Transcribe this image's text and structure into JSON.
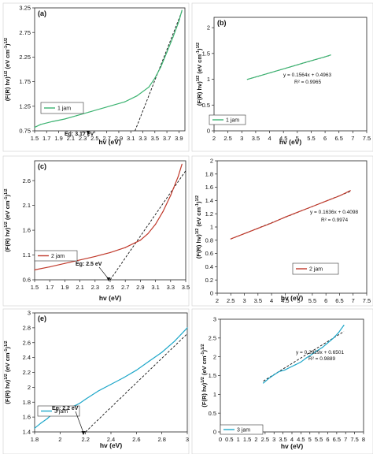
{
  "chart_data": [
    {
      "type": "line",
      "panel_label": "(a)",
      "xlabel": "hv (eV)",
      "ylabel": "(F(R) hv)^{1/2} (eV cm^{-1})^{1/2}",
      "xlim": [
        1.5,
        4.0
      ],
      "ylim": [
        0.75,
        3.25
      ],
      "xticks": [
        "1.5",
        "1.7",
        "1.9",
        "2.1",
        "2.3",
        "2.5",
        "2.7",
        "2.9",
        "3.1",
        "3.3",
        "3.5",
        "3.7",
        "3.9"
      ],
      "yticks": [
        "0.75",
        "1.25",
        "1.75",
        "2.25",
        "2.75",
        "3.25"
      ],
      "series": [
        {
          "name": "1 jam",
          "color": "#3cb371",
          "x": [
            1.5,
            1.6,
            1.8,
            2.0,
            2.2,
            2.4,
            2.6,
            2.8,
            3.0,
            3.2,
            3.4,
            3.5,
            3.6,
            3.7,
            3.8,
            3.9,
            3.95
          ],
          "y": [
            0.82,
            0.88,
            0.94,
            0.99,
            1.06,
            1.13,
            1.2,
            1.27,
            1.34,
            1.46,
            1.64,
            1.82,
            2.05,
            2.35,
            2.65,
            2.98,
            3.2
          ]
        }
      ],
      "tangent": {
        "x": [
          3.17,
          3.95
        ],
        "y": [
          0.75,
          3.18
        ]
      },
      "annotation": "Eg: 3.17 eV",
      "grid": false,
      "legend": "left"
    },
    {
      "type": "scatter",
      "panel_label": "(b)",
      "xlabel": "hv (eV)",
      "ylabel": "(F(R) hv)^{1/2} (eV cm^{-1})^{1/2}",
      "xlim": [
        2,
        7.5
      ],
      "ylim": [
        0,
        2.2
      ],
      "xticks": [
        "2",
        "2.5",
        "3",
        "3.5",
        "4",
        "4.5",
        "5",
        "5.5",
        "6",
        "6.5",
        "7",
        "7.5"
      ],
      "yticks": [
        "0",
        "0.5",
        "1",
        "1.5",
        "2"
      ],
      "series": [
        {
          "name": "1 jam",
          "color": "#3cb371",
          "x": [
            3.2,
            3.6,
            4.0,
            4.4,
            4.8,
            5.2,
            5.6,
            6.0,
            6.2
          ],
          "y": [
            0.998,
            1.058,
            1.122,
            1.186,
            1.248,
            1.312,
            1.374,
            1.435,
            1.47
          ]
        }
      ],
      "fit": {
        "x": [
          3.2,
          6.2
        ],
        "equation": "y = 0.1564x + 0.4963",
        "r2": "R² = 0.9965",
        "slope": 0.1564,
        "intercept": 0.4963
      },
      "grid": false,
      "legend": "bottom-left"
    },
    {
      "type": "line",
      "panel_label": "(c)",
      "xlabel": "hv (eV)",
      "ylabel": "(F(R) hv)^{1/2} (eV cm^{-1})^{1/2}",
      "xlim": [
        1.5,
        3.5
      ],
      "ylim": [
        0.6,
        3.0
      ],
      "xticks": [
        "1.5",
        "1.7",
        "1.9",
        "2.1",
        "2.3",
        "2.5",
        "2.7",
        "2.9",
        "3.1",
        "3.3",
        "3.5"
      ],
      "yticks": [
        "0.6",
        "1.1",
        "1.6",
        "2.1",
        "2.6"
      ],
      "series": [
        {
          "name": "2 jam",
          "color": "#c0392b",
          "x": [
            1.5,
            1.7,
            1.9,
            2.1,
            2.3,
            2.5,
            2.7,
            2.9,
            3.0,
            3.1,
            3.2,
            3.3,
            3.4,
            3.45
          ],
          "y": [
            0.8,
            0.86,
            0.93,
            1.0,
            1.07,
            1.15,
            1.25,
            1.4,
            1.53,
            1.72,
            1.98,
            2.3,
            2.68,
            2.93
          ]
        }
      ],
      "tangent": {
        "x": [
          2.5,
          3.5
        ],
        "y": [
          0.6,
          2.8
        ]
      },
      "annotation": "Eg: 2.5 eV",
      "grid": false,
      "legend": "left"
    },
    {
      "type": "scatter",
      "panel_label": "",
      "xlabel": "hv (eV)",
      "ylabel": "(F(R) hv)^{1/2} (eV cm^{-1})^{1/2}",
      "xlim": [
        2,
        7.5
      ],
      "ylim": [
        0,
        2.0
      ],
      "xticks": [
        "2",
        "2.5",
        "3",
        "3.5",
        "4",
        "4.5",
        "5",
        "5.5",
        "6",
        "6.5",
        "7",
        "7.5"
      ],
      "yticks": [
        "0",
        "0.2",
        "0.4",
        "0.6",
        "0.8",
        "1",
        "1.2",
        "1.4",
        "1.6",
        "1.8",
        "2"
      ],
      "series": [
        {
          "name": "2 jam",
          "color": "#c0392b",
          "x": [
            2.5,
            3.0,
            3.5,
            4.0,
            4.5,
            5.0,
            5.5,
            6.0,
            6.5,
            6.9
          ],
          "y": [
            0.82,
            0.9,
            0.98,
            1.06,
            1.15,
            1.23,
            1.31,
            1.39,
            1.47,
            1.55
          ]
        }
      ],
      "fit": {
        "x": [
          2.5,
          6.9
        ],
        "equation": "y = 0.1636x + 0.4098",
        "r2": "R² = 0.9974",
        "slope": 0.1636,
        "intercept": 0.4098
      },
      "grid": false,
      "legend": "bottom-right"
    },
    {
      "type": "line",
      "panel_label": "(e)",
      "xlabel": "hv (eV)",
      "ylabel": "(F(R) hv)^{1/2} (eV cm^{-1})^{1/2}",
      "xlim": [
        1.8,
        3.0
      ],
      "ylim": [
        1.4,
        3.0
      ],
      "xticks": [
        "1.8",
        "2",
        "2.2",
        "2.4",
        "2.6",
        "2.8",
        "3"
      ],
      "yticks": [
        "1.4",
        "1.6",
        "1.8",
        "2",
        "2.2",
        "2.4",
        "2.6",
        "2.8",
        "3"
      ],
      "series": [
        {
          "name": "3 jam",
          "color": "#1ea7c9",
          "x": [
            1.8,
            1.85,
            1.9,
            1.95,
            2.0,
            2.05,
            2.1,
            2.15,
            2.2,
            2.3,
            2.4,
            2.5,
            2.6,
            2.7,
            2.8,
            2.9,
            3.0
          ],
          "y": [
            1.45,
            1.52,
            1.58,
            1.66,
            1.7,
            1.72,
            1.74,
            1.78,
            1.84,
            1.95,
            2.04,
            2.13,
            2.23,
            2.35,
            2.47,
            2.62,
            2.8
          ]
        }
      ],
      "tangent": {
        "x": [
          2.2,
          3.0
        ],
        "y": [
          1.4,
          2.72
        ]
      },
      "annotation": "Eg: 2.2 eV",
      "grid": false,
      "legend": "left"
    },
    {
      "type": "scatter",
      "panel_label": "",
      "xlabel": "hv (eV)",
      "ylabel": "(F(R) hv)^{1/2} (eV cm^{-1})^{1/2}",
      "xlim": [
        0,
        8
      ],
      "ylim": [
        0,
        3.0
      ],
      "xticks": [
        "0",
        "0.5",
        "1",
        "1.5",
        "2",
        "2.5",
        "3",
        "3.5",
        "4",
        "4.5",
        "5",
        "5.5",
        "6",
        "6.5",
        "7",
        "7.5",
        "8"
      ],
      "yticks": [
        "0",
        "0.5",
        "1",
        "1.5",
        "2",
        "2.5",
        "3"
      ],
      "series": [
        {
          "name": "3 jam",
          "color": "#1ea7c9",
          "x": [
            2.4,
            2.7,
            3.0,
            3.3,
            3.6,
            3.9,
            4.2,
            4.5,
            4.8,
            5.1,
            5.4,
            5.7,
            6.0,
            6.3,
            6.6,
            6.9
          ],
          "y": [
            1.3,
            1.42,
            1.52,
            1.61,
            1.65,
            1.72,
            1.79,
            1.86,
            1.97,
            2.06,
            2.16,
            2.25,
            2.37,
            2.49,
            2.64,
            2.84
          ]
        }
      ],
      "fit": {
        "x": [
          2.4,
          6.9
        ],
        "equation": "y = 0.2929x + 0.6501",
        "r2": "R² = 0.9889",
        "slope": 0.2929,
        "intercept": 0.6501
      },
      "grid": false,
      "legend": "bottom-left"
    }
  ]
}
